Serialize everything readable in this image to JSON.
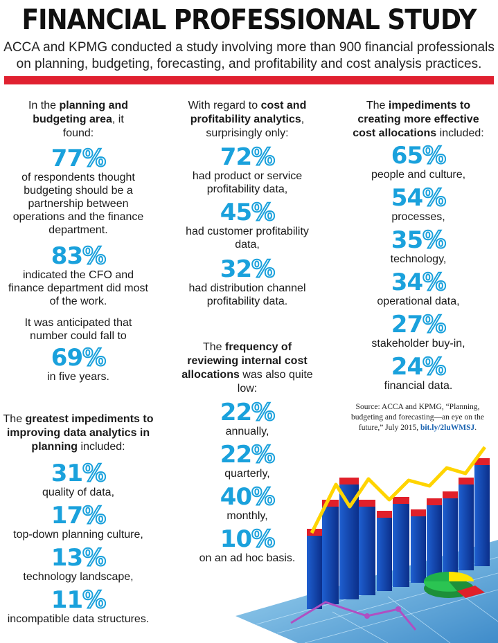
{
  "header": {
    "title": "FINANCIAL PROFESSIONAL STUDY",
    "subtitle_line1": "ACCA and KPMG conducted a study involving more than 900 financial professionals",
    "subtitle_line2": "on planning, budgeting, forecasting, and profitability and cost analysis practices."
  },
  "planning": {
    "intro_pre": "In the ",
    "intro_bold": "planning and budgeting area",
    "intro_post": ", it found:",
    "stat1_value": "77",
    "stat1_desc": "of respondents thought budgeting should be a partnership between operations and the finance department.",
    "stat2_value": "83",
    "stat2_desc": "indicated the CFO and finance department did most of the work.",
    "anticipated": "It was anticipated that number could fall to",
    "stat3_value": "69",
    "stat3_desc": "in five years."
  },
  "impediments_analytics": {
    "intro_pre": "The ",
    "intro_bold": "greatest impediments to improving data analytics in planning",
    "intro_post": " included:",
    "items": [
      {
        "value": "31",
        "label": "quality of data,"
      },
      {
        "value": "17",
        "label": "top-down planning culture,"
      },
      {
        "value": "13",
        "label": "technology landscape,"
      },
      {
        "value": "11",
        "label": "incompatible data structures."
      }
    ]
  },
  "cost_profitability": {
    "intro_pre": "With regard to ",
    "intro_bold": "cost and profitability analytics",
    "intro_post": ", surprisingly only:",
    "items": [
      {
        "value": "72",
        "label": "had product or service profitability data,"
      },
      {
        "value": "45",
        "label": "had customer profitability data,"
      },
      {
        "value": "32",
        "label": "had distribution channel profitability data."
      }
    ]
  },
  "frequency": {
    "intro_pre": "The ",
    "intro_bold": "frequency of reviewing internal cost allocations",
    "intro_post": " was also quite low:",
    "items": [
      {
        "value": "22",
        "label": "annually,"
      },
      {
        "value": "22",
        "label": "quarterly,"
      },
      {
        "value": "40",
        "label": "monthly,"
      },
      {
        "value": "10",
        "label": "on an ad hoc basis."
      }
    ]
  },
  "impediments_cost": {
    "intro_pre": "The ",
    "intro_bold": "impediments to creating more effective cost allocations",
    "intro_post": " included:",
    "items": [
      {
        "value": "65",
        "label": "people and culture,"
      },
      {
        "value": "54",
        "label": "processes,"
      },
      {
        "value": "35",
        "label": "technology,"
      },
      {
        "value": "34",
        "label": "operational data,"
      },
      {
        "value": "27",
        "label": "stakeholder buy-in,"
      },
      {
        "value": "24",
        "label": "financial data."
      }
    ]
  },
  "percent_sign": "%",
  "source": {
    "text": "Source: ACCA and KPMG, “Planning, budgeting and forecasting—an eye on the future,” July 2015, ",
    "link": "bit.ly/2luWMSJ",
    "end": "."
  },
  "colors": {
    "accent_blue": "#1aa1dc",
    "rule_red": "#e02130"
  },
  "illustration_icon": "stock-bar-chart-illustration"
}
